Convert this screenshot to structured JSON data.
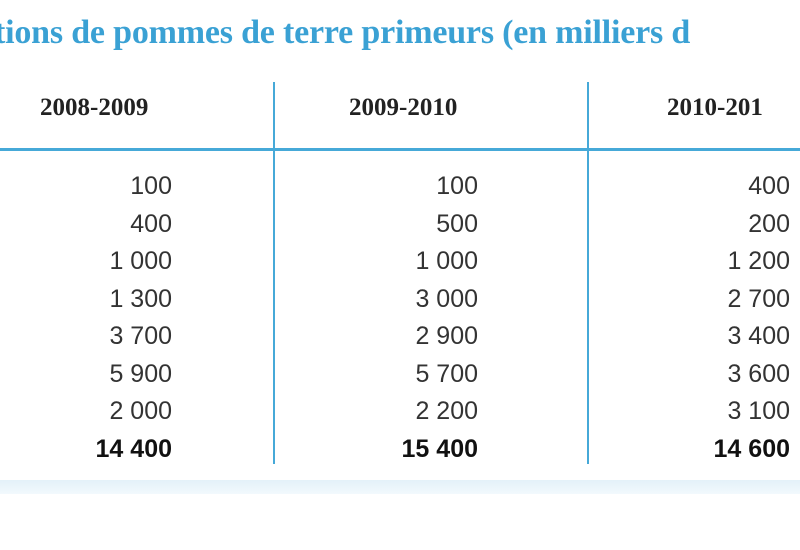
{
  "title": "tions de pommes de terre primeurs (en milliers d",
  "columns": [
    "2008-2009",
    "2009-2010",
    "2010-201"
  ],
  "rows": [
    [
      "100",
      "100",
      "400"
    ],
    [
      "400",
      "500",
      "200"
    ],
    [
      "1 000",
      "1 000",
      "1 200"
    ],
    [
      "1 300",
      "3 000",
      "2 700"
    ],
    [
      "3 700",
      "2 900",
      "3 400"
    ],
    [
      "5 900",
      "5 700",
      "3 600"
    ],
    [
      "2 000",
      "2 200",
      "3 100"
    ]
  ],
  "totals": [
    "14 400",
    "15 400",
    "14 600"
  ],
  "colors": {
    "accent": "#3aa1d4",
    "text": "#333333",
    "background": "#ffffff"
  }
}
